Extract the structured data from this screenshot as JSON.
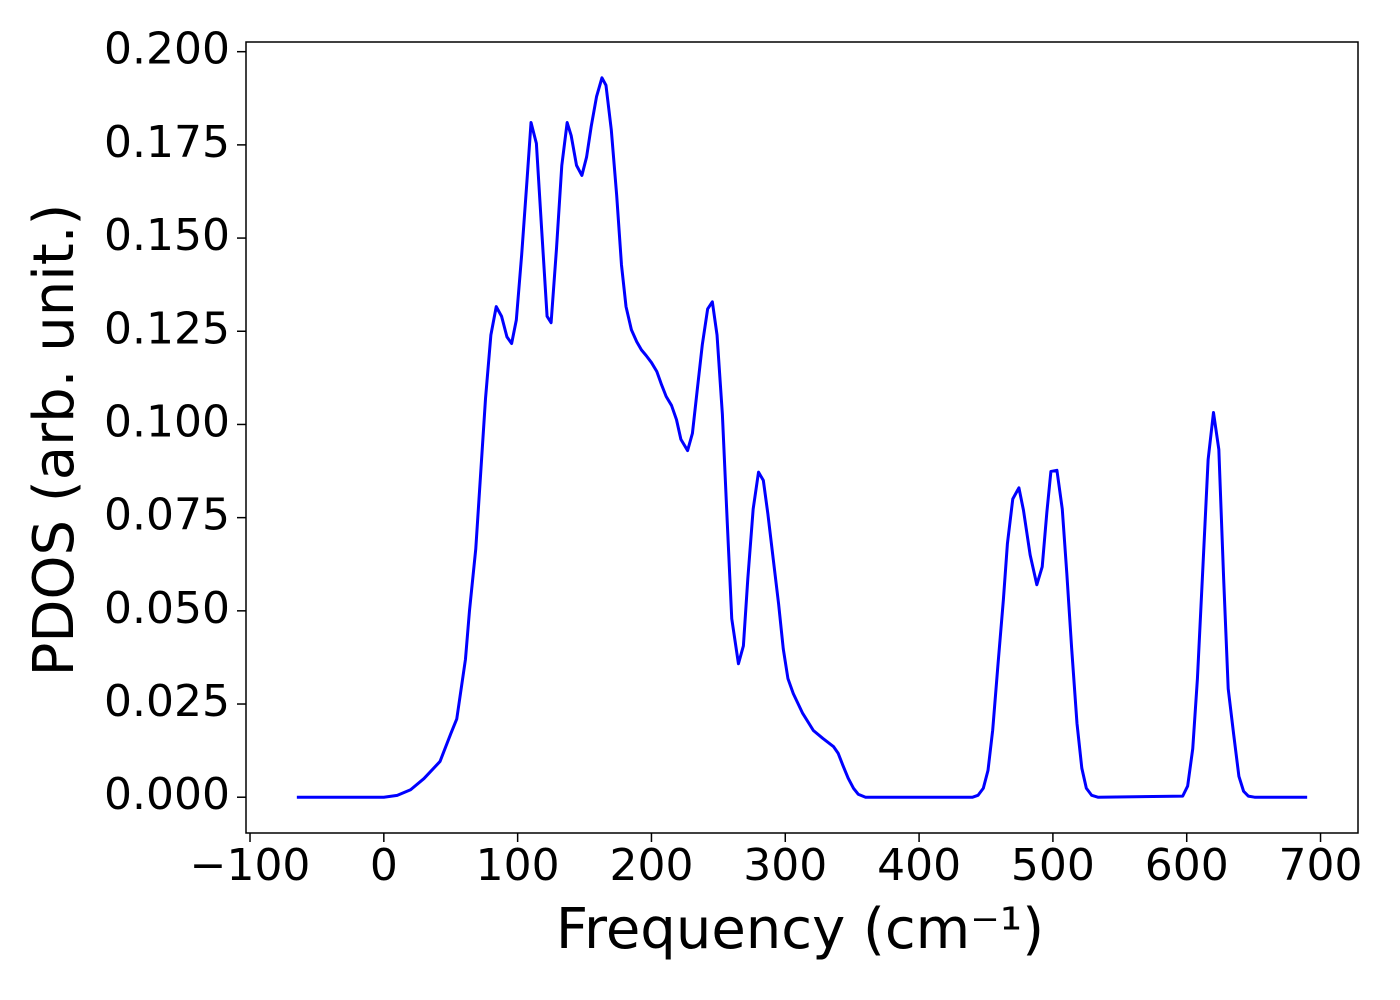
{
  "chart_data": {
    "type": "line",
    "x_label": "Frequency (cm⁻¹)",
    "y_label": "PDOS (arb. unit.)",
    "x": [
      -65,
      0,
      10,
      20,
      30,
      42,
      50,
      54.5,
      61,
      64,
      68.7,
      76,
      80,
      84,
      88,
      92,
      95.5,
      99,
      103,
      107,
      110,
      114,
      118,
      122,
      125,
      129,
      133,
      137,
      140,
      144,
      148,
      151.5,
      155,
      159,
      163,
      166,
      170,
      174,
      177.6,
      181,
      185,
      189,
      192.5,
      196,
      200,
      204,
      207.5,
      211,
      215,
      218.7,
      222,
      227,
      230.6,
      234,
      238,
      242,
      245.5,
      249,
      253,
      256.7,
      260,
      265,
      268.7,
      272,
      276,
      280,
      283.6,
      287,
      291,
      295,
      298.5,
      302,
      306,
      313,
      321,
      328,
      336,
      339.5,
      343,
      347,
      351,
      354.5,
      360,
      440,
      444,
      448,
      451.5,
      455,
      459,
      463,
      466,
      470,
      474.6,
      478,
      483,
      488,
      492,
      495.5,
      498.5,
      503,
      507,
      510.4,
      514,
      518,
      521.6,
      525,
      529,
      533.6,
      597,
      600.7,
      604.5,
      608,
      612,
      616,
      620,
      624,
      627.6,
      631,
      635,
      639,
      642.5,
      646,
      650.7,
      690
    ],
    "series": [
      {
        "name": "PDOS",
        "color": "#0000ff",
        "values": [
          0,
          0,
          0.0005,
          0.002,
          0.005,
          0.0096,
          0.017,
          0.021,
          0.037,
          0.05,
          0.0666,
          0.107,
          0.124,
          0.1316,
          0.129,
          0.1235,
          0.1217,
          0.128,
          0.1455,
          0.1655,
          0.181,
          0.1754,
          0.152,
          0.129,
          0.1273,
          0.147,
          0.1695,
          0.181,
          0.1775,
          0.1695,
          0.1668,
          0.1717,
          0.18,
          0.188,
          0.193,
          0.191,
          0.179,
          0.1615,
          0.1428,
          0.1316,
          0.1254,
          0.1222,
          0.12,
          0.1185,
          0.1166,
          0.1142,
          0.1107,
          0.1075,
          0.1051,
          0.1013,
          0.096,
          0.093,
          0.0976,
          0.1086,
          0.1214,
          0.131,
          0.1329,
          0.124,
          0.1027,
          0.0733,
          0.0479,
          0.0358,
          0.0406,
          0.0586,
          0.0773,
          0.0872,
          0.085,
          0.076,
          0.0639,
          0.0519,
          0.0398,
          0.0318,
          0.0278,
          0.0225,
          0.0179,
          0.0158,
          0.0136,
          0.0118,
          0.0086,
          0.0051,
          0.0024,
          0.0008,
          0,
          0,
          0.0005,
          0.0024,
          0.0072,
          0.018,
          0.0358,
          0.053,
          0.068,
          0.08,
          0.083,
          0.077,
          0.065,
          0.057,
          0.0618,
          0.0765,
          0.0874,
          0.0877,
          0.0773,
          0.06,
          0.04,
          0.0198,
          0.0078,
          0.0024,
          0.0005,
          0,
          0.0003,
          0.003,
          0.013,
          0.0318,
          0.061,
          0.0906,
          0.1032,
          0.0933,
          0.0586,
          0.0291,
          0.0171,
          0.0056,
          0.0016,
          0.0003,
          0,
          0
        ]
      }
    ],
    "xlim": [
      -103,
      728
    ],
    "ylim": [
      -0.0096,
      0.2026
    ],
    "xticks": [
      {
        "value": -100,
        "label": "−100"
      },
      0,
      100,
      200,
      300,
      400,
      500,
      600,
      700
    ],
    "yticks": [
      {
        "value": 0,
        "label": "0.000"
      },
      {
        "value": 0.025,
        "label": "0.025"
      },
      {
        "value": 0.05,
        "label": "0.050"
      },
      {
        "value": 0.075,
        "label": "0.075"
      },
      {
        "value": 0.1,
        "label": "0.100"
      },
      {
        "value": 0.125,
        "label": "0.125"
      },
      {
        "value": 0.15,
        "label": "0.150"
      },
      {
        "value": 0.175,
        "label": "0.175"
      },
      {
        "value": 0.2,
        "label": "0.200"
      }
    ],
    "grid": false
  }
}
